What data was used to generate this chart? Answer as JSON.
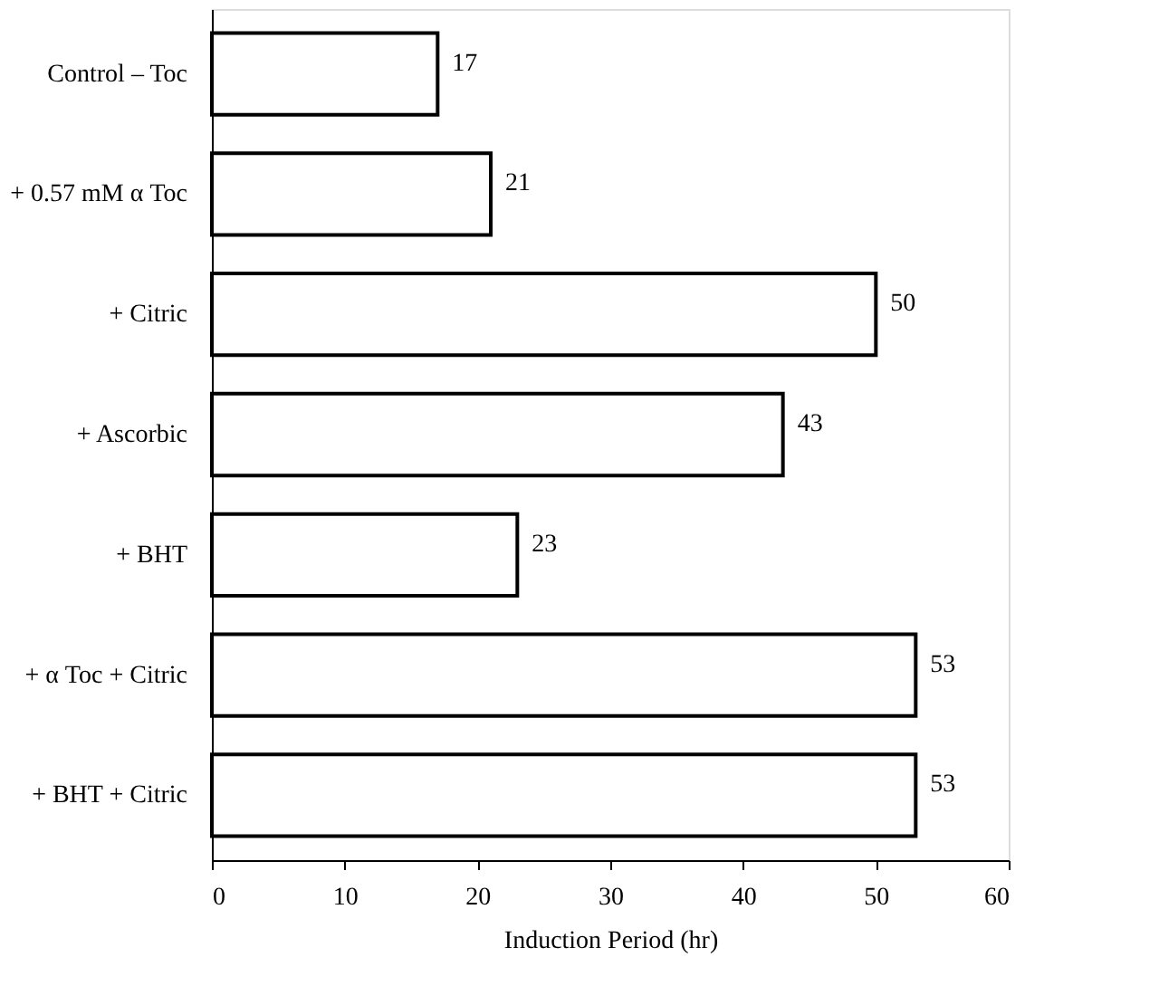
{
  "chart_data": {
    "type": "bar",
    "orientation": "horizontal",
    "xlabel": "Induction Period (hr)",
    "categories": [
      "Control – Toc",
      "+ 0.57 mM α Toc",
      "+ Citric",
      "+ Ascorbic",
      "+ BHT",
      "+ α Toc + Citric",
      "+ BHT + Citric"
    ],
    "values": [
      17,
      21,
      50,
      43,
      23,
      53,
      53
    ],
    "color": "#ffffff",
    "xlim": [
      0,
      60
    ],
    "xticks": [
      0,
      10,
      20,
      30,
      40,
      50,
      60
    ],
    "grid": false,
    "data_labels": true
  }
}
